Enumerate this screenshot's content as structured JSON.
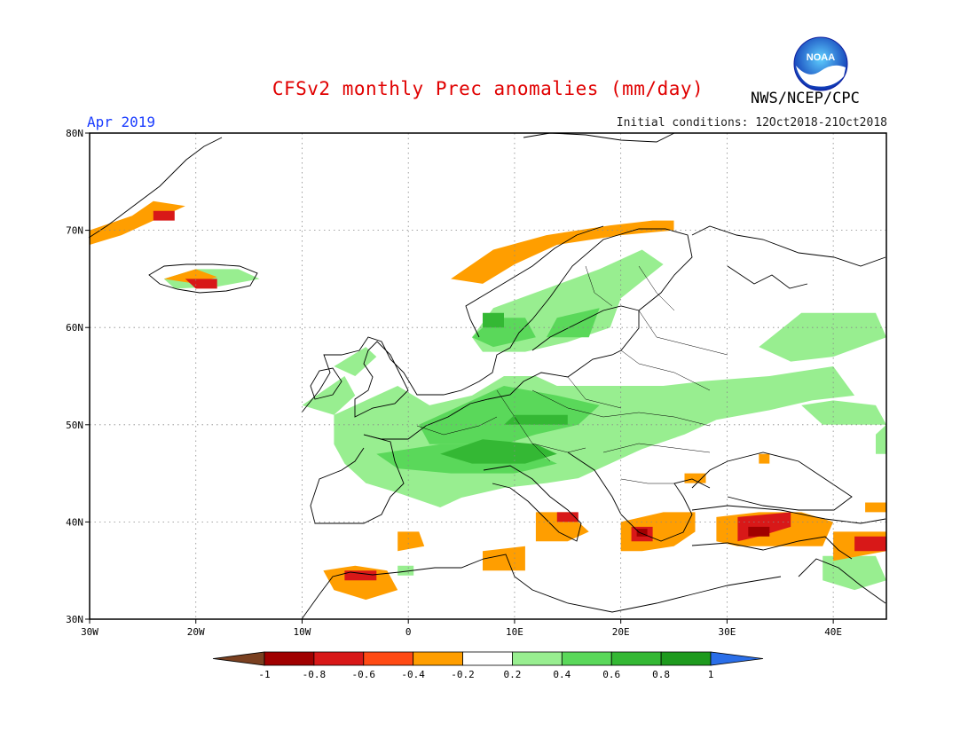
{
  "header": {
    "title": "CFSv2 monthly Prec anomalies (mm/day)",
    "month": "Apr 2019",
    "initial_conditions": "Initial conditions: 12Oct2018-21Oct2018",
    "agency": "NWS/NCEP/CPC",
    "logo_text": "NOAA"
  },
  "map": {
    "lon_range": [
      -30,
      45
    ],
    "lat_range": [
      30,
      80
    ],
    "lon_ticks": [
      {
        "v": -30,
        "label": "30W"
      },
      {
        "v": -20,
        "label": "20W"
      },
      {
        "v": -10,
        "label": "10W"
      },
      {
        "v": 0,
        "label": "0"
      },
      {
        "v": 10,
        "label": "10E"
      },
      {
        "v": 20,
        "label": "20E"
      },
      {
        "v": 30,
        "label": "30E"
      },
      {
        "v": 40,
        "label": "40E"
      }
    ],
    "lat_ticks": [
      {
        "v": 30,
        "label": "30N"
      },
      {
        "v": 40,
        "label": "40N"
      },
      {
        "v": 50,
        "label": "50N"
      },
      {
        "v": 60,
        "label": "60N"
      },
      {
        "v": 70,
        "label": "70N"
      },
      {
        "v": 80,
        "label": "80N"
      }
    ],
    "grid": "dotted"
  },
  "colorbar": {
    "labels": [
      "-1",
      "-0.8",
      "-0.6",
      "-0.4",
      "-0.2",
      "0.2",
      "0.4",
      "0.6",
      "0.8",
      "1"
    ],
    "colors": [
      "#7a4020",
      "#a00000",
      "#d81818",
      "#ff4a14",
      "#ff9e00",
      "#ffffff",
      "#98ee90",
      "#5ad85a",
      "#34b834",
      "#1e9a1e",
      "#2a6ee8"
    ]
  },
  "regions": [
    {
      "name": "green",
      "color": "#98ee90",
      "polys": [
        [
          [
            -7,
            51
          ],
          [
            -1,
            54
          ],
          [
            2,
            52
          ],
          [
            6,
            53
          ],
          [
            9,
            55
          ],
          [
            12,
            55
          ],
          [
            14,
            54
          ],
          [
            19,
            54
          ],
          [
            24,
            54
          ],
          [
            28,
            54.5
          ],
          [
            34,
            55
          ],
          [
            40,
            56
          ],
          [
            42,
            53
          ],
          [
            38,
            52.5
          ],
          [
            34,
            51.5
          ],
          [
            29,
            50.5
          ],
          [
            26,
            49
          ],
          [
            22,
            47.5
          ],
          [
            19,
            46
          ],
          [
            16,
            44.5
          ],
          [
            13,
            44
          ],
          [
            9,
            43.5
          ],
          [
            5,
            42.5
          ],
          [
            3,
            41.5
          ],
          [
            -1,
            43
          ],
          [
            -4,
            44
          ],
          [
            -6,
            46
          ],
          [
            -7,
            48
          ]
        ],
        [
          [
            6,
            59
          ],
          [
            8,
            62
          ],
          [
            13,
            64
          ],
          [
            18,
            66
          ],
          [
            22,
            68
          ],
          [
            24,
            66.5
          ],
          [
            20,
            63
          ],
          [
            19,
            60
          ],
          [
            15,
            58.5
          ],
          [
            11,
            57.5
          ],
          [
            7,
            57.5
          ]
        ],
        [
          [
            33,
            58
          ],
          [
            37,
            61.5
          ],
          [
            44,
            61.5
          ],
          [
            45,
            59
          ],
          [
            40,
            57
          ],
          [
            36,
            56.5
          ]
        ],
        [
          [
            37,
            52
          ],
          [
            39,
            50
          ],
          [
            45,
            50
          ],
          [
            44,
            52
          ],
          [
            40,
            52.5
          ]
        ],
        [
          [
            -10,
            52
          ],
          [
            -6,
            55
          ],
          [
            -5,
            53
          ],
          [
            -7,
            51
          ]
        ],
        [
          [
            -7,
            56
          ],
          [
            -4,
            58
          ],
          [
            -3,
            57
          ],
          [
            -5,
            55
          ]
        ],
        [
          [
            -23,
            65
          ],
          [
            -20,
            66
          ],
          [
            -16,
            66
          ],
          [
            -14,
            65
          ],
          [
            -18,
            64.2
          ],
          [
            -22,
            64
          ]
        ],
        [
          [
            39,
            34
          ],
          [
            39,
            36.5
          ],
          [
            44,
            36.5
          ],
          [
            45,
            34
          ],
          [
            42,
            33
          ]
        ],
        [
          [
            -1,
            34.5
          ],
          [
            -1,
            35.5
          ],
          [
            0.5,
            35.5
          ],
          [
            0.5,
            34.5
          ]
        ],
        [
          [
            44,
            49
          ],
          [
            45,
            50
          ],
          [
            45,
            47
          ],
          [
            44,
            47
          ]
        ]
      ]
    },
    {
      "name": "green-mid",
      "color": "#5ad85a",
      "polys": [
        [
          [
            5,
            52
          ],
          [
            9,
            54
          ],
          [
            14,
            53
          ],
          [
            18,
            52
          ],
          [
            16,
            50
          ],
          [
            12,
            49
          ],
          [
            9,
            48
          ],
          [
            5,
            48
          ],
          [
            2,
            48
          ],
          [
            1,
            50
          ]
        ],
        [
          [
            -3,
            47
          ],
          [
            3,
            48
          ],
          [
            10,
            48
          ],
          [
            14,
            46
          ],
          [
            10,
            45
          ],
          [
            4,
            45
          ],
          [
            -1,
            45.5
          ]
        ],
        [
          [
            6,
            59
          ],
          [
            8,
            61
          ],
          [
            11,
            61
          ],
          [
            12,
            59
          ],
          [
            8,
            58
          ]
        ],
        [
          [
            13,
            59
          ],
          [
            14,
            61
          ],
          [
            18,
            62
          ],
          [
            17,
            59
          ]
        ]
      ]
    },
    {
      "name": "green-dark",
      "color": "#34b834",
      "polys": [
        [
          [
            3,
            47
          ],
          [
            7,
            48.5
          ],
          [
            12,
            48
          ],
          [
            14,
            47
          ],
          [
            11,
            46
          ],
          [
            6,
            46
          ]
        ],
        [
          [
            9,
            50
          ],
          [
            10,
            51
          ],
          [
            15,
            51
          ],
          [
            15,
            50
          ]
        ],
        [
          [
            7,
            60
          ],
          [
            7,
            61.5
          ],
          [
            9,
            61.5
          ],
          [
            9,
            60
          ]
        ]
      ]
    },
    {
      "name": "orange",
      "color": "#ff9e00",
      "polys": [
        [
          [
            -1,
            37
          ],
          [
            -1,
            39
          ],
          [
            1,
            39
          ],
          [
            1.5,
            37.5
          ]
        ],
        [
          [
            29,
            38
          ],
          [
            29,
            40.5
          ],
          [
            33,
            41
          ],
          [
            37,
            41
          ],
          [
            40,
            40
          ],
          [
            39,
            37.5
          ],
          [
            35,
            37.5
          ],
          [
            31,
            37.5
          ]
        ],
        [
          [
            20,
            37
          ],
          [
            20,
            40
          ],
          [
            24,
            41
          ],
          [
            27,
            41
          ],
          [
            27,
            39
          ],
          [
            25,
            37.5
          ],
          [
            22,
            37
          ]
        ],
        [
          [
            -7,
            33
          ],
          [
            -8,
            35
          ],
          [
            -5,
            35.5
          ],
          [
            -2,
            35
          ],
          [
            -1,
            33
          ],
          [
            -4,
            32
          ]
        ],
        [
          [
            7,
            35
          ],
          [
            7,
            37
          ],
          [
            11,
            37.5
          ],
          [
            11,
            35
          ]
        ],
        [
          [
            12,
            38
          ],
          [
            12,
            41
          ],
          [
            15,
            41
          ],
          [
            17,
            39
          ],
          [
            15,
            38
          ]
        ],
        [
          [
            40,
            36
          ],
          [
            40,
            39
          ],
          [
            45,
            39
          ],
          [
            45,
            37
          ]
        ],
        [
          [
            4,
            65
          ],
          [
            8,
            68
          ],
          [
            13,
            69.5
          ],
          [
            19,
            70.5
          ],
          [
            23,
            71
          ],
          [
            25,
            71
          ],
          [
            25,
            70
          ],
          [
            20,
            69.5
          ],
          [
            14,
            68.5
          ],
          [
            10,
            66.5
          ],
          [
            7,
            64.5
          ]
        ],
        [
          [
            -24,
            73
          ],
          [
            -26,
            71.5
          ],
          [
            -30,
            70
          ],
          [
            -30,
            68.5
          ],
          [
            -27,
            69.5
          ],
          [
            -23,
            71.5
          ],
          [
            -21,
            72.5
          ]
        ],
        [
          [
            -23,
            65
          ],
          [
            -20,
            66
          ],
          [
            -18,
            65.2
          ],
          [
            -20,
            64.5
          ]
        ],
        [
          [
            26,
            44
          ],
          [
            26,
            45
          ],
          [
            28,
            45
          ],
          [
            28,
            44
          ]
        ],
        [
          [
            43,
            41
          ],
          [
            43,
            42
          ],
          [
            45,
            42
          ],
          [
            45,
            41
          ]
        ],
        [
          [
            33,
            46
          ],
          [
            33,
            47
          ],
          [
            34,
            47
          ],
          [
            34,
            46
          ]
        ]
      ]
    },
    {
      "name": "red",
      "color": "#d81818",
      "polys": [
        [
          [
            31,
            38
          ],
          [
            31,
            40.5
          ],
          [
            36,
            41
          ],
          [
            36,
            39.5
          ],
          [
            33,
            38.5
          ]
        ],
        [
          [
            21,
            38
          ],
          [
            21,
            39.5
          ],
          [
            23,
            39.5
          ],
          [
            23,
            38
          ]
        ],
        [
          [
            -6,
            34
          ],
          [
            -6,
            35
          ],
          [
            -3,
            35
          ],
          [
            -3,
            34
          ]
        ],
        [
          [
            -20,
            64
          ],
          [
            -21,
            65
          ],
          [
            -18,
            65
          ],
          [
            -18,
            64
          ]
        ],
        [
          [
            -24,
            71
          ],
          [
            -24,
            72
          ],
          [
            -22,
            72
          ],
          [
            -22,
            71
          ]
        ],
        [
          [
            42,
            37
          ],
          [
            42,
            38.5
          ],
          [
            45,
            38.5
          ],
          [
            45,
            37
          ]
        ],
        [
          [
            14,
            40
          ],
          [
            14,
            41
          ],
          [
            16,
            41
          ],
          [
            16,
            40
          ]
        ]
      ]
    },
    {
      "name": "red-dark",
      "color": "#a00000",
      "polys": [
        [
          [
            32,
            38.5
          ],
          [
            32,
            39.5
          ],
          [
            34,
            39.5
          ],
          [
            34,
            38.5
          ]
        ],
        [
          [
            21.5,
            38.5
          ],
          [
            21.5,
            39.3
          ],
          [
            22.5,
            39.3
          ],
          [
            22.5,
            38.5
          ]
        ]
      ]
    }
  ]
}
